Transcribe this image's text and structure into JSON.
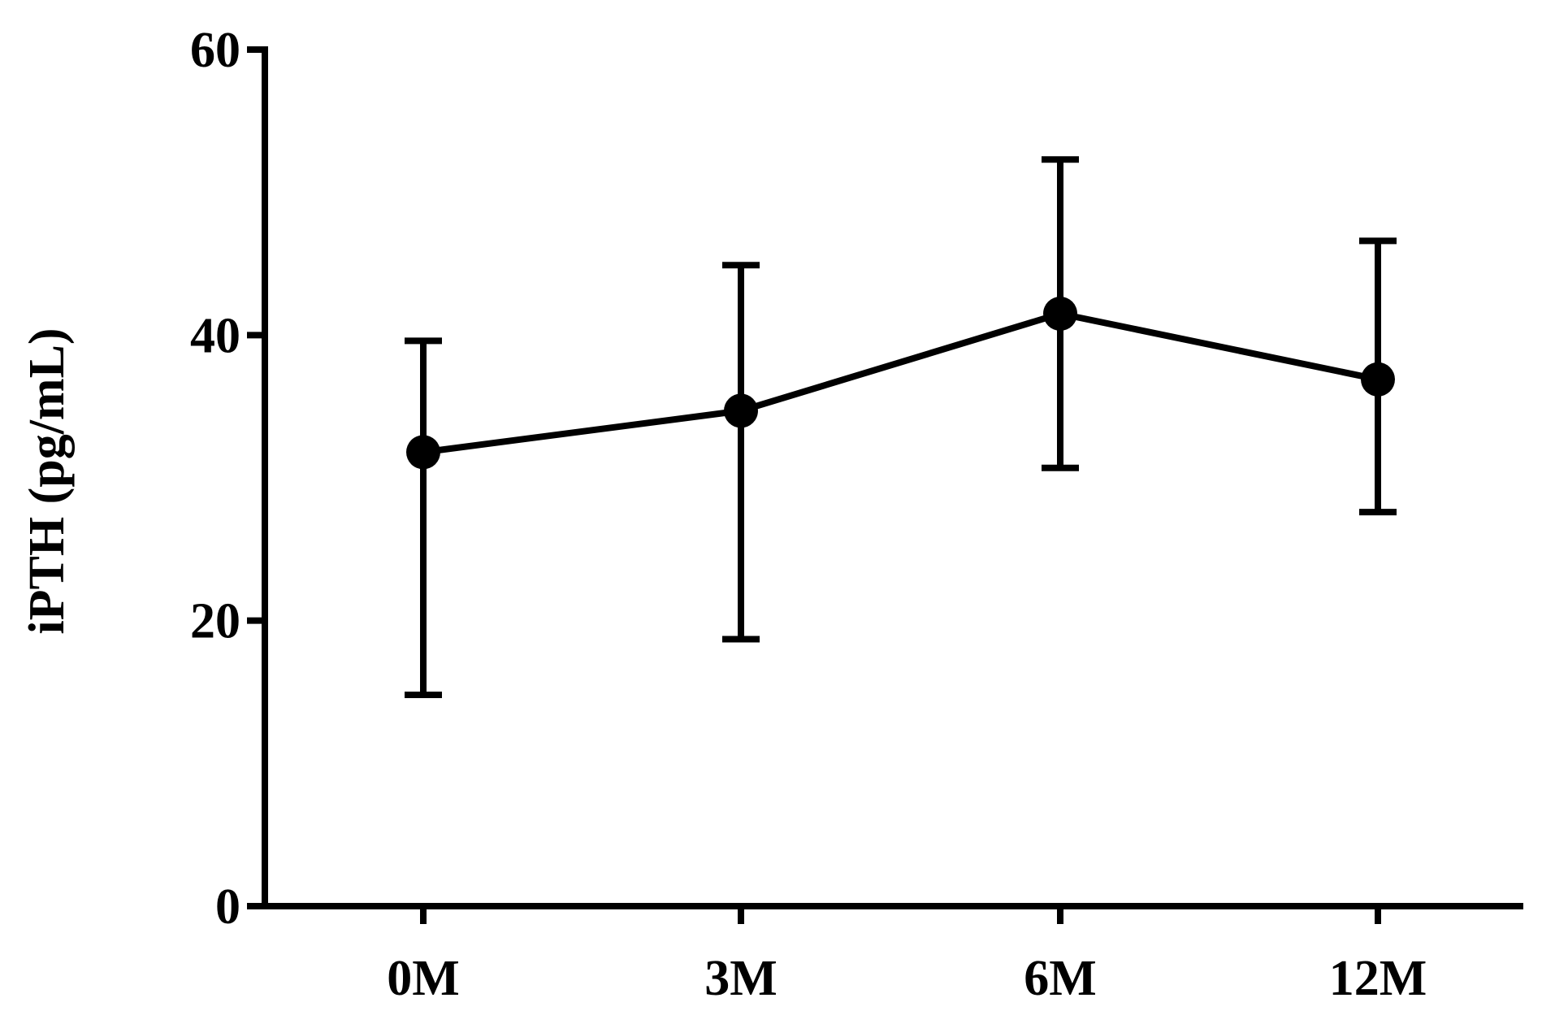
{
  "chart_data": {
    "type": "line",
    "title": "",
    "xlabel": "",
    "ylabel": "iPTH (pg/mL)",
    "categories": [
      "0M",
      "3M",
      "6M",
      "12M"
    ],
    "series": [
      {
        "values": [
          31.8,
          34.7,
          41.5,
          36.9
        ],
        "error_low": [
          14.8,
          18.7,
          30.7,
          27.6
        ],
        "error_high": [
          39.6,
          44.9,
          52.3,
          46.6
        ]
      }
    ],
    "ylim": [
      0,
      60
    ],
    "yticks": [
      "0",
      "20",
      "40",
      "60"
    ],
    "grid": false,
    "legend": "none",
    "colors": {
      "line": "#000000",
      "marker": "#000000"
    }
  }
}
